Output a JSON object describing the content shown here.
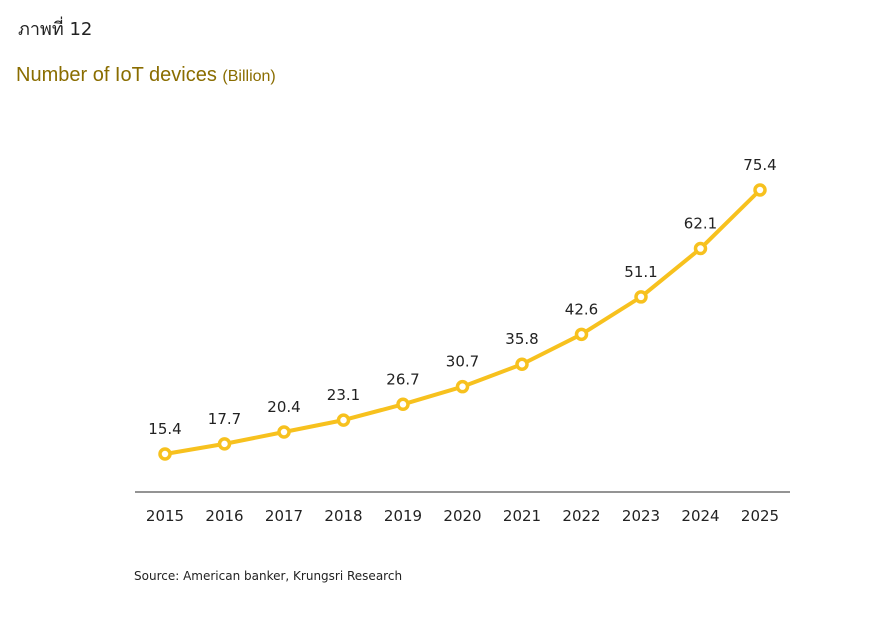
{
  "figure_label": {
    "prefix": "ภาพที่",
    "number": "12"
  },
  "source": "Source: American banker, Krungsri Research",
  "colors": {
    "series": "#F7C11E",
    "axis": "#555555",
    "title": "#8a6d00",
    "text": "#222222"
  },
  "chart_data": {
    "type": "line",
    "title": "Number of IoT devices",
    "title_unit": "(Billion)",
    "xlabel": "",
    "ylabel": "",
    "categories": [
      "2015",
      "2016",
      "2017",
      "2018",
      "2019",
      "2020",
      "2021",
      "2022",
      "2023",
      "2024",
      "2025"
    ],
    "series": [
      {
        "name": "",
        "values": [
          15.4,
          17.7,
          20.4,
          23.1,
          26.7,
          30.7,
          35.8,
          42.6,
          51.1,
          62.1,
          75.4
        ],
        "data_labels": [
          "15.4",
          "17.7",
          "20.4",
          "23.1",
          "26.7",
          "30.7",
          "35.8",
          "42.6",
          "51.1",
          "62.1",
          "75.4"
        ]
      }
    ],
    "ylim": [
      0,
      80
    ],
    "grid": false,
    "legend": "none",
    "markers": "hollow-circle"
  }
}
